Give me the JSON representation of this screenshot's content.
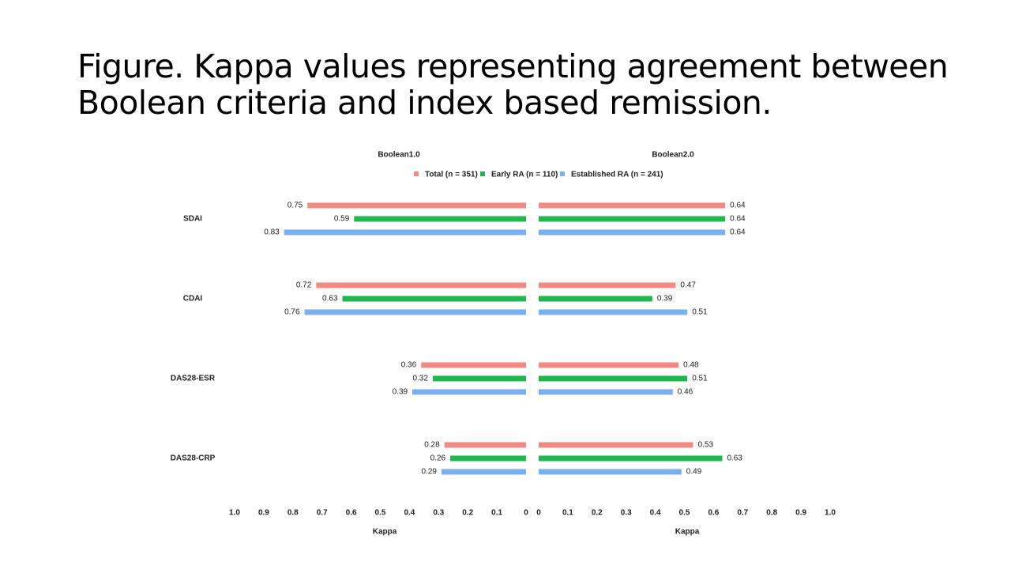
{
  "slide_title_lines": [
    "Figure. Kappa values representing agreement between",
    "Boolean criteria and index based remission."
  ],
  "chart_data": [
    {
      "type": "bar",
      "orientation": "horizontal",
      "title": "Boolean1.0",
      "xlabel": "Kappa",
      "categories": [
        "SDAI",
        "CDAI",
        "DAS28-ESR",
        "DAS28-CRP"
      ],
      "xlim": [
        0,
        1
      ],
      "x_inverted": true,
      "xticks": [
        {
          "value": 1,
          "label": "1.0"
        },
        0.9,
        0.8,
        0.7,
        0.6,
        0.5,
        0.4,
        0.3,
        0.2,
        0.1,
        0
      ],
      "series": [
        {
          "name": "Total (n = 351)",
          "color": "#f08a82",
          "values": [
            0.75,
            0.72,
            0.36,
            0.28
          ]
        },
        {
          "name": "Early RA (n = 110)",
          "color": "#1fb84c",
          "values": [
            0.59,
            0.63,
            0.32,
            0.26
          ]
        },
        {
          "name": "Established RA (n = 241)",
          "color": "#7caef2",
          "values": [
            0.83,
            0.76,
            0.39,
            0.29
          ]
        }
      ]
    },
    {
      "type": "bar",
      "orientation": "horizontal",
      "title": "Boolean2.0",
      "xlabel": "Kappa",
      "xlim": [
        0,
        1
      ],
      "x_inverted": false,
      "xticks": [
        0,
        0.1,
        0.2,
        0.3,
        0.4,
        0.5,
        0.6,
        0.7,
        0.8,
        0.9,
        {
          "value": 1,
          "label": "1.0"
        }
      ],
      "series": [
        {
          "color": "#f08a82",
          "values": [
            0.64,
            0.47,
            0.48,
            0.53
          ]
        },
        {
          "color": "#1fb84c",
          "values": [
            0.64,
            0.39,
            0.51,
            0.63
          ]
        },
        {
          "color": "#7caef2",
          "values": [
            0.64,
            0.51,
            0.46,
            0.49
          ]
        }
      ]
    }
  ]
}
